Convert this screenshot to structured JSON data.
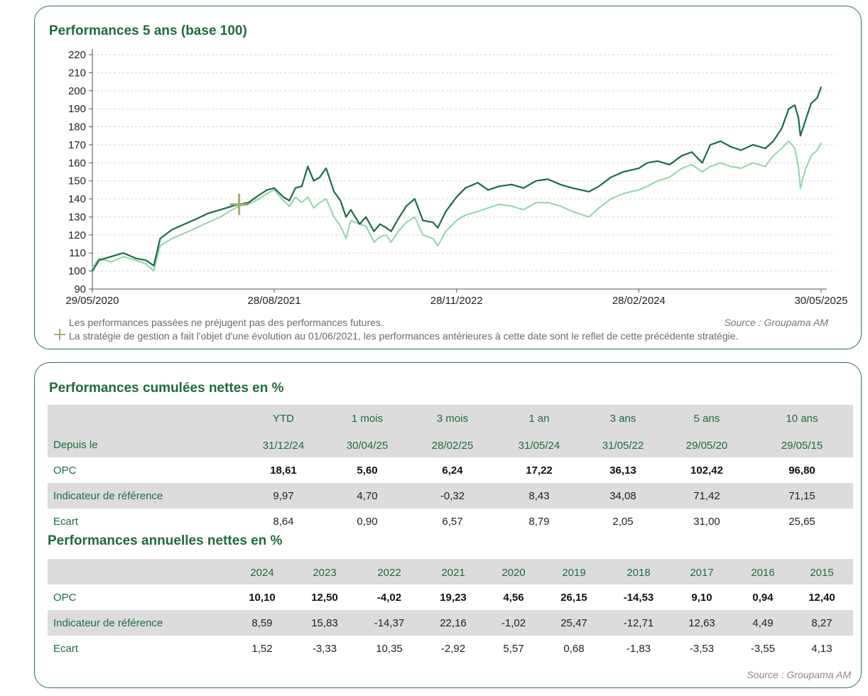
{
  "chart_panel": {
    "title": "Performances 5 ans (base 100)",
    "disclaimer": "Les performances passées ne préjugent pas des performances futures.",
    "source": "Source : Groupama AM",
    "strategy_note": "La stratégie de gestion a fait l'objet d'une évolution au 01/06/2021, les performances antérieures à cette date sont le reflet de cette précédente stratégie."
  },
  "chart_data": {
    "type": "line",
    "title": "Performances 5 ans (base 100)",
    "ylim": [
      90,
      220
    ],
    "yticks": [
      "90",
      "100",
      "110",
      "120",
      "130",
      "140",
      "150",
      "160",
      "170",
      "180",
      "190",
      "200",
      "210",
      "220"
    ],
    "xlim": [
      "2020-05-29",
      "2025-05-30"
    ],
    "xticks": [
      "29/05/2020",
      "28/08/2021",
      "28/11/2022",
      "28/02/2024",
      "30/05/2025"
    ],
    "grid": true,
    "colors": {
      "opc": "#1a6b47",
      "benchmark": "#8fd6a6"
    },
    "strategy_change_marker": {
      "date": "2021-06-01",
      "value": 137
    },
    "series": [
      {
        "key": "opc",
        "x": [
          "2020-05-29",
          "2020-06-15",
          "2020-07-15",
          "2020-08-15",
          "2020-09-15",
          "2020-10-10",
          "2020-10-30",
          "2020-11-15",
          "2020-12-15",
          "2021-01-15",
          "2021-02-15",
          "2021-03-15",
          "2021-04-15",
          "2021-05-15",
          "2021-06-01",
          "2021-06-25",
          "2021-07-20",
          "2021-08-10",
          "2021-08-28",
          "2021-09-20",
          "2021-10-05",
          "2021-10-20",
          "2021-11-05",
          "2021-11-20",
          "2021-12-05",
          "2021-12-20",
          "2022-01-05",
          "2022-01-25",
          "2022-02-10",
          "2022-02-24",
          "2022-03-08",
          "2022-03-30",
          "2022-04-15",
          "2022-05-05",
          "2022-05-20",
          "2022-06-05",
          "2022-06-17",
          "2022-07-05",
          "2022-07-25",
          "2022-08-15",
          "2022-09-05",
          "2022-09-30",
          "2022-10-12",
          "2022-11-01",
          "2022-11-28",
          "2022-12-20",
          "2023-01-20",
          "2023-02-15",
          "2023-03-15",
          "2023-04-15",
          "2023-05-15",
          "2023-06-15",
          "2023-07-15",
          "2023-08-15",
          "2023-09-15",
          "2023-10-26",
          "2023-11-20",
          "2023-12-20",
          "2024-01-20",
          "2024-02-28",
          "2024-03-20",
          "2024-04-15",
          "2024-05-15",
          "2024-06-15",
          "2024-07-10",
          "2024-08-05",
          "2024-08-25",
          "2024-09-20",
          "2024-10-15",
          "2024-11-10",
          "2024-12-10",
          "2025-01-10",
          "2025-01-30",
          "2025-02-20",
          "2025-03-10",
          "2025-03-25",
          "2025-04-03",
          "2025-04-08",
          "2025-04-20",
          "2025-05-05",
          "2025-05-20",
          "2025-05-30"
        ],
        "y": [
          100,
          106,
          108,
          110,
          107,
          106,
          103,
          118,
          123,
          126,
          129,
          132,
          134,
          136,
          137,
          138,
          142,
          145,
          146,
          141,
          139,
          146,
          147,
          158,
          150,
          152,
          157,
          144,
          139,
          130,
          134,
          126,
          130,
          122,
          126,
          124,
          122,
          129,
          136,
          140,
          128,
          127,
          124,
          133,
          141,
          146,
          149,
          145,
          147,
          148,
          146,
          150,
          151,
          148,
          146,
          144,
          147,
          152,
          155,
          157,
          160,
          161,
          159,
          164,
          166,
          160,
          170,
          172,
          169,
          167,
          170,
          168,
          172,
          179,
          190,
          192,
          185,
          175,
          183,
          193,
          196,
          202
        ]
      },
      {
        "key": "benchmark",
        "x": [
          "2020-05-29",
          "2020-06-15",
          "2020-07-15",
          "2020-08-15",
          "2020-09-15",
          "2020-10-10",
          "2020-10-30",
          "2020-11-15",
          "2020-12-15",
          "2021-01-15",
          "2021-02-15",
          "2021-03-15",
          "2021-04-15",
          "2021-05-15",
          "2021-06-01",
          "2021-06-25",
          "2021-07-20",
          "2021-08-10",
          "2021-08-28",
          "2021-09-20",
          "2021-10-05",
          "2021-10-20",
          "2021-11-05",
          "2021-11-20",
          "2021-12-05",
          "2021-12-20",
          "2022-01-05",
          "2022-01-25",
          "2022-02-10",
          "2022-02-24",
          "2022-03-08",
          "2022-03-30",
          "2022-04-15",
          "2022-05-05",
          "2022-05-20",
          "2022-06-05",
          "2022-06-17",
          "2022-07-05",
          "2022-07-25",
          "2022-08-15",
          "2022-09-05",
          "2022-09-30",
          "2022-10-12",
          "2022-11-01",
          "2022-11-28",
          "2022-12-20",
          "2023-01-20",
          "2023-02-15",
          "2023-03-15",
          "2023-04-15",
          "2023-05-15",
          "2023-06-15",
          "2023-07-15",
          "2023-08-15",
          "2023-09-15",
          "2023-10-26",
          "2023-11-20",
          "2023-12-20",
          "2024-01-20",
          "2024-02-28",
          "2024-03-20",
          "2024-04-15",
          "2024-05-15",
          "2024-06-15",
          "2024-07-10",
          "2024-08-05",
          "2024-08-25",
          "2024-09-20",
          "2024-10-15",
          "2024-11-10",
          "2024-12-10",
          "2025-01-10",
          "2025-01-30",
          "2025-02-20",
          "2025-03-10",
          "2025-03-25",
          "2025-04-03",
          "2025-04-08",
          "2025-04-20",
          "2025-05-05",
          "2025-05-20",
          "2025-05-30"
        ],
        "y": [
          102,
          107,
          105,
          108,
          106,
          104,
          100,
          114,
          118,
          121,
          124,
          127,
          130,
          134,
          136,
          137,
          140,
          143,
          145,
          139,
          136,
          141,
          138,
          141,
          135,
          138,
          140,
          130,
          125,
          118,
          128,
          126,
          125,
          116,
          119,
          120,
          116,
          122,
          127,
          130,
          120,
          118,
          114,
          122,
          128,
          131,
          133,
          135,
          137,
          136,
          134,
          138,
          138,
          136,
          133,
          130,
          135,
          140,
          143,
          145,
          147,
          150,
          152,
          157,
          159,
          155,
          158,
          160,
          158,
          157,
          160,
          158,
          164,
          168,
          172,
          168,
          158,
          146,
          156,
          164,
          167,
          171
        ]
      }
    ]
  },
  "cumulative": {
    "title": "Performances cumulées nettes en %",
    "headers": [
      "YTD",
      "1 mois",
      "3 mois",
      "1 an",
      "3 ans",
      "5 ans",
      "10 ans"
    ],
    "since_label": "Depuis le",
    "since_dates": [
      "31/12/24",
      "30/04/25",
      "28/02/25",
      "31/05/24",
      "31/05/22",
      "29/05/20",
      "29/05/15"
    ],
    "rows": [
      {
        "label": "OPC",
        "values": [
          "18,61",
          "5,60",
          "6,24",
          "17,22",
          "36,13",
          "102,42",
          "96,80"
        ]
      },
      {
        "label": "Indicateur de référence",
        "values": [
          "9,97",
          "4,70",
          "-0,32",
          "8,43",
          "34,08",
          "71,42",
          "71,15"
        ]
      },
      {
        "label": "Ecart",
        "values": [
          "8,64",
          "0,90",
          "6,57",
          "8,79",
          "2,05",
          "31,00",
          "25,65"
        ]
      }
    ]
  },
  "annual": {
    "title": "Performances annuelles nettes en %",
    "headers": [
      "2024",
      "2023",
      "2022",
      "2021",
      "2020",
      "2019",
      "2018",
      "2017",
      "2016",
      "2015"
    ],
    "rows": [
      {
        "label": "OPC",
        "values": [
          "10,10",
          "12,50",
          "-4,02",
          "19,23",
          "4,56",
          "26,15",
          "-14,53",
          "9,10",
          "0,94",
          "12,40"
        ]
      },
      {
        "label": "Indicateur de référence",
        "values": [
          "8,59",
          "15,83",
          "-14,37",
          "22,16",
          "-1,02",
          "25,47",
          "-12,71",
          "12,63",
          "4,49",
          "8,27"
        ]
      },
      {
        "label": "Ecart",
        "values": [
          "1,52",
          "-3,33",
          "10,35",
          "-2,92",
          "5,57",
          "0,68",
          "-1,83",
          "-3,53",
          "-3,55",
          "4,13"
        ]
      }
    ],
    "source": "Source : Groupama AM"
  }
}
